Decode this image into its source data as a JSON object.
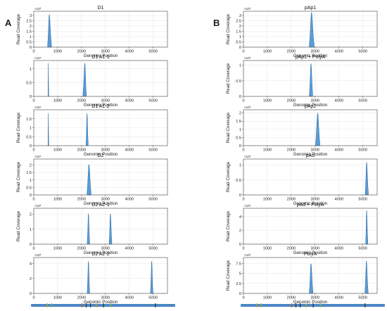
{
  "figure": {
    "panel_letters": [
      "A",
      "B"
    ],
    "peak_color": "#5b9bd5",
    "peak_edge": "#2e6da4",
    "genome_bar_color": "#4a86c5"
  },
  "chart_data": [
    {
      "panel": "A",
      "type": "area",
      "title": "D1",
      "xlabel": "Genomic Position",
      "ylabel": "Read Coverage",
      "multiplier": "×10³",
      "xlim": [
        0,
        5600
      ],
      "ylim": [
        0,
        3.4
      ],
      "xticks": [
        0,
        1000,
        2000,
        3000,
        4000,
        5000
      ],
      "yticks": [
        0,
        0.5,
        1.0,
        1.5,
        2.0,
        2.5,
        3.0
      ],
      "peaks": [
        {
          "start": 580,
          "center": 650,
          "end": 740,
          "height": 3.1
        }
      ]
    },
    {
      "panel": "A",
      "type": "area",
      "title": "D1 A1-1",
      "xlabel": "Genomic Position",
      "ylabel": "",
      "multiplier": "×10⁴",
      "xlim": [
        0,
        5600
      ],
      "ylim": [
        0,
        1.3
      ],
      "xticks": [
        0,
        1000,
        2000,
        3000,
        4000,
        5000
      ],
      "yticks": [
        0,
        0.5,
        1.0
      ],
      "peaks": [
        {
          "start": 595,
          "center": 610,
          "end": 625,
          "height": 1.2
        },
        {
          "start": 2060,
          "center": 2140,
          "end": 2200,
          "height": 1.2
        }
      ]
    },
    {
      "panel": "A",
      "type": "area",
      "title": "D1 A1-2",
      "xlabel": "Genomic Position",
      "ylabel": "Read Coverage",
      "multiplier": "×10⁴",
      "xlim": [
        0,
        5600
      ],
      "ylim": [
        0,
        2.0
      ],
      "xticks": [
        0,
        1000,
        2000,
        3000,
        4000,
        5000
      ],
      "yticks": [
        0,
        0.5,
        1.0,
        1.5
      ],
      "peaks": [
        {
          "start": 595,
          "center": 610,
          "end": 625,
          "height": 1.8
        },
        {
          "start": 2190,
          "center": 2230,
          "end": 2280,
          "height": 1.8
        }
      ]
    },
    {
      "panel": "A",
      "type": "area",
      "title": "D2",
      "xlabel": "Genomic Position",
      "ylabel": "Read Coverage",
      "multiplier": "×10⁴",
      "xlim": [
        0,
        5600
      ],
      "ylim": [
        0,
        2.4
      ],
      "xticks": [
        0,
        1000,
        2000,
        3000,
        4000,
        5000
      ],
      "yticks": [
        0,
        0.5,
        1.0,
        1.5,
        2.0
      ],
      "peaks": [
        {
          "start": 2230,
          "center": 2310,
          "end": 2400,
          "height": 2.05
        }
      ]
    },
    {
      "panel": "A",
      "type": "area",
      "title": "D2 A2-1",
      "xlabel": "Genomic Position",
      "ylabel": "Read Coverage",
      "multiplier": "×10³",
      "xlim": [
        0,
        5600
      ],
      "ylim": [
        0,
        2.4
      ],
      "xticks": [
        0,
        1000,
        2000,
        3000,
        4000,
        5000
      ],
      "yticks": [
        0,
        1,
        2
      ],
      "peaks": [
        {
          "start": 2240,
          "center": 2290,
          "end": 2340,
          "height": 2.05
        },
        {
          "start": 3160,
          "center": 3210,
          "end": 3270,
          "height": 2.05
        }
      ]
    },
    {
      "panel": "A",
      "type": "area",
      "title": "D2 A2-2",
      "xlabel": "Genomic Position",
      "ylabel": "",
      "multiplier": "×10³",
      "xlim": [
        0,
        5600
      ],
      "ylim": [
        0,
        4.8
      ],
      "xticks": [
        0,
        1000,
        2000,
        3000,
        4000,
        5000
      ],
      "yticks": [
        0,
        2,
        4
      ],
      "peaks": [
        {
          "start": 2240,
          "center": 2290,
          "end": 2340,
          "height": 4.3
        },
        {
          "start": 4890,
          "center": 4940,
          "end": 4990,
          "height": 4.3
        }
      ]
    },
    {
      "panel": "B",
      "type": "area",
      "title": "pAp1",
      "xlabel": "Genomic Position",
      "ylabel": "Read Coverage",
      "multiplier": "×10³",
      "xlim": [
        0,
        5600
      ],
      "ylim": [
        0,
        3.4
      ],
      "xticks": [
        0,
        1000,
        2000,
        3000,
        4000,
        5000
      ],
      "yticks": [
        0,
        0.5,
        1.0,
        1.5,
        2.0,
        2.5,
        3.0
      ],
      "peaks": [
        {
          "start": 2760,
          "center": 2850,
          "end": 2960,
          "height": 3.3
        }
      ]
    },
    {
      "panel": "B",
      "type": "area",
      "title": "pAp1 + PolyA",
      "xlabel": "Genomic Position",
      "ylabel": "Read Coverage",
      "multiplier": "×10⁵",
      "xlim": [
        0,
        5600
      ],
      "ylim": [
        0,
        1.15
      ],
      "xticks": [
        0,
        1000,
        2000,
        3000,
        4000,
        5000
      ],
      "yticks": [
        0,
        0.5,
        1.0
      ],
      "peaks": [
        {
          "start": 2760,
          "center": 2830,
          "end": 2900,
          "height": 1.05
        }
      ]
    },
    {
      "panel": "B",
      "type": "area",
      "title": "pAp2",
      "xlabel": "Genomic Position",
      "ylabel": "Read Coverage",
      "multiplier": "×10³",
      "xlim": [
        0,
        5600
      ],
      "ylim": [
        0,
        2.2
      ],
      "xticks": [
        0,
        1000,
        2000,
        3000,
        4000,
        5000
      ],
      "yticks": [
        0,
        0.5,
        1.0,
        1.5,
        2.0
      ],
      "peaks": [
        {
          "start": 3020,
          "center": 3110,
          "end": 3200,
          "height": 2.0
        }
      ]
    },
    {
      "panel": "B",
      "type": "area",
      "title": "pAd",
      "xlabel": "Genomic Position",
      "ylabel": "Read Coverage",
      "multiplier": "×10⁵",
      "xlim": [
        0,
        5600
      ],
      "ylim": [
        0,
        1.2
      ],
      "xticks": [
        0,
        1000,
        2000,
        3000,
        4000,
        5000
      ],
      "yticks": [
        0,
        0.5,
        1.0
      ],
      "peaks": [
        {
          "start": 5100,
          "center": 5160,
          "end": 5230,
          "height": 1.1
        }
      ]
    },
    {
      "panel": "B",
      "type": "area",
      "title": "pAd + PolyA",
      "xlabel": "Genomic Position",
      "ylabel": "Read Coverage",
      "multiplier": "×10⁵",
      "xlim": [
        0,
        5600
      ],
      "ylim": [
        0,
        5.2
      ],
      "xticks": [
        0,
        1000,
        2000,
        3000,
        4000,
        5000
      ],
      "yticks": [
        0,
        2,
        4
      ],
      "peaks": [
        {
          "start": 5120,
          "center": 5160,
          "end": 5210,
          "height": 4.9
        }
      ]
    },
    {
      "panel": "B",
      "type": "area",
      "title": "PolyA",
      "xlabel": "Genomic Position",
      "ylabel": "Read Coverage",
      "multiplier": "×10³",
      "xlim": [
        0,
        5600
      ],
      "ylim": [
        0,
        9.0
      ],
      "xticks": [
        0,
        1000,
        2000,
        3000,
        4000,
        5000
      ],
      "yticks": [
        0,
        2.5,
        5.0,
        7.5
      ],
      "peaks": [
        {
          "start": 2760,
          "center": 2830,
          "end": 2910,
          "height": 7.5
        },
        {
          "start": 5090,
          "center": 5150,
          "end": 5220,
          "height": 8.2
        }
      ]
    }
  ]
}
